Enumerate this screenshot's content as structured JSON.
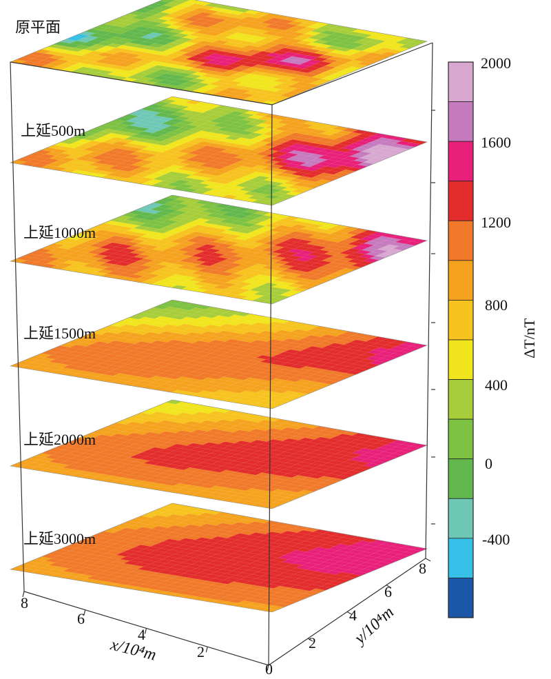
{
  "chart_data": {
    "type": "heatmap",
    "layers": [
      {
        "label": "原平面",
        "smoothness": 0
      },
      {
        "label": "上延500m",
        "smoothness": 1
      },
      {
        "label": "上延1000m",
        "smoothness": 2
      },
      {
        "label": "上延1500m",
        "smoothness": 3
      },
      {
        "label": "上延2000m",
        "smoothness": 4
      },
      {
        "label": "上延3000m",
        "smoothness": 5
      }
    ],
    "x_axis": {
      "label": "x/10⁴m",
      "ticks": [
        "8",
        "6",
        "4",
        "2",
        "0"
      ],
      "range": [
        0,
        8
      ]
    },
    "y_axis": {
      "label": "y/10⁴m",
      "ticks": [
        "2",
        "4",
        "6",
        "8"
      ],
      "range": [
        0,
        8
      ]
    },
    "colorbar": {
      "label": "ΔT/nT",
      "ticks": [
        "2000",
        "1600",
        "1200",
        "800",
        "400",
        "0",
        "-400"
      ],
      "colors": [
        "#d8a8d0",
        "#c57bbd",
        "#e8207a",
        "#e32d2c",
        "#f07a29",
        "#f5a21f",
        "#f6c31f",
        "#f1e51d",
        "#a7ce3a",
        "#7dc242",
        "#62b84c",
        "#6fc8b5",
        "#36c0e8",
        "#1b57a6"
      ]
    }
  }
}
